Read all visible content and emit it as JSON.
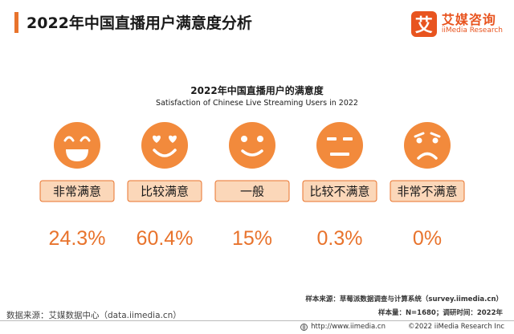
{
  "header": {
    "title": "2022年中国直播用户满意度分析",
    "brand_mark": "艾",
    "brand_cn": "艾媒咨询",
    "brand_en": "iiMedia Research"
  },
  "chart_data": {
    "type": "table",
    "title": "2022年中国直播用户的满意度",
    "subtitle": "Satisfaction of Chinese Live Streaming Users in 2022",
    "categories": [
      "非常满意",
      "比较满意",
      "一般",
      "比较不满意",
      "非常不满意"
    ],
    "values": [
      24.3,
      60.4,
      15,
      0.3,
      0
    ],
    "value_labels": [
      "24.3%",
      "60.4%",
      "15%",
      "0.3%",
      "0%"
    ],
    "icons": [
      "very-happy-face-icon",
      "happy-face-icon",
      "smile-face-icon",
      "neutral-face-icon",
      "sad-face-icon"
    ],
    "colors": {
      "icon": "#f28a3c",
      "label_bg": "#fbd7b9",
      "label_border": "#e8732c",
      "value": "#e8732c"
    }
  },
  "footer": {
    "source_note": "样本来源：草莓派数据调查与计算系统（survey.iimedia.cn）",
    "sample_note": "样本量：N=1680；调研时间：2022年",
    "data_source": "数据来源：艾媒数据中心（data.iimedia.cn）",
    "url": "http://www.iimedia.cn",
    "copyright": "©2022  iiMedia Research  Inc"
  }
}
